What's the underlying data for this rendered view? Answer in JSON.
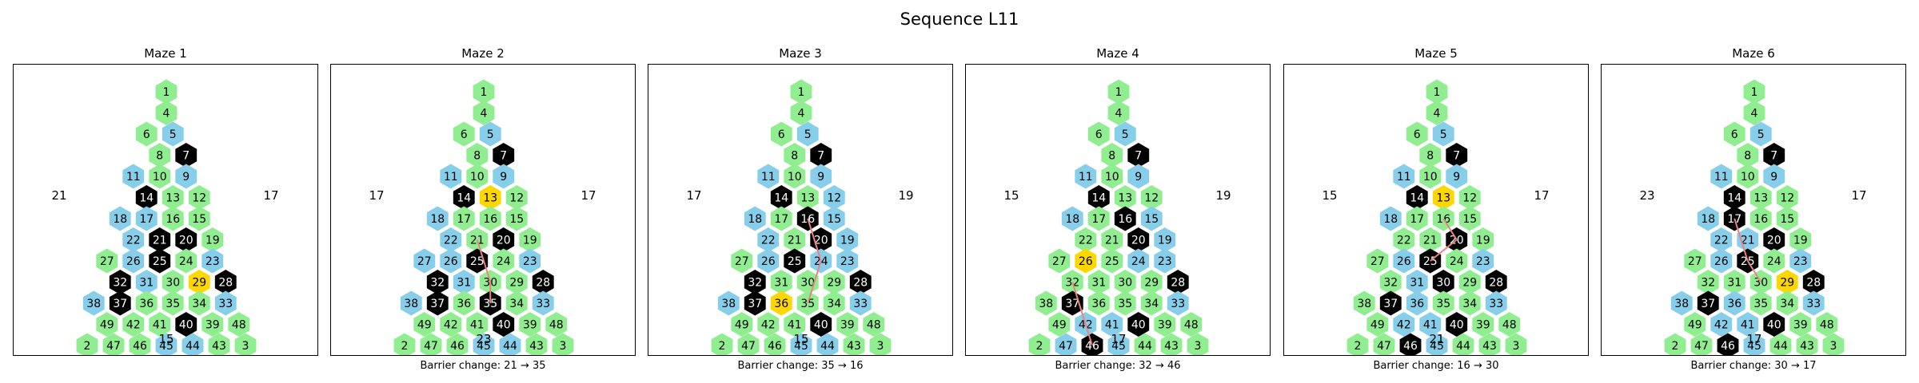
{
  "title": "Sequence L11",
  "colors": {
    "green": "#90EE90",
    "blue": "#87CEEB",
    "black": "#000000",
    "gold": "#FFD700",
    "barrier": "#F08080"
  },
  "mazes": [
    {
      "title": "Maze 1",
      "left_number": "21",
      "right_number": "17",
      "bottom_number": "15",
      "caption": "",
      "blue": [
        5,
        9,
        11,
        17,
        18,
        22,
        23,
        26,
        31,
        33,
        38,
        44,
        45
      ],
      "black": [
        7,
        14,
        20,
        21,
        25,
        28,
        32,
        37,
        40
      ],
      "gold": [
        29
      ],
      "barrier": []
    },
    {
      "title": "Maze 2",
      "left_number": "17",
      "right_number": "17",
      "bottom_number": "23",
      "caption": "Barrier change: 21 → 35",
      "blue": [
        5,
        9,
        11,
        18,
        22,
        23,
        26,
        27,
        31,
        33,
        38,
        44,
        45
      ],
      "black": [
        7,
        14,
        20,
        25,
        28,
        32,
        35,
        37,
        40
      ],
      "gold": [
        13
      ],
      "barrier": [
        [
          21,
          30
        ],
        [
          30,
          35
        ]
      ]
    },
    {
      "title": "Maze 3",
      "left_number": "17",
      "right_number": "19",
      "bottom_number": "15",
      "caption": "Barrier change: 35 → 16",
      "blue": [
        5,
        9,
        11,
        12,
        15,
        18,
        19,
        22,
        23,
        24,
        26,
        33,
        38,
        44,
        45
      ],
      "black": [
        7,
        14,
        16,
        20,
        25,
        28,
        32,
        37,
        40
      ],
      "gold": [
        36
      ],
      "barrier": [
        [
          16,
          24
        ],
        [
          24,
          35
        ]
      ]
    },
    {
      "title": "Maze 4",
      "left_number": "15",
      "right_number": "19",
      "bottom_number": "17",
      "caption": "Barrier change: 32 → 46",
      "blue": [
        5,
        9,
        11,
        15,
        18,
        19,
        23,
        24,
        33,
        41,
        42,
        45,
        47
      ],
      "black": [
        7,
        14,
        16,
        20,
        28,
        37,
        40,
        46
      ],
      "gold": [
        26
      ],
      "barrier": [
        [
          32,
          42
        ],
        [
          42,
          46
        ]
      ]
    },
    {
      "title": "Maze 5",
      "left_number": "15",
      "right_number": "17",
      "bottom_number": "21",
      "caption": "Barrier change: 16 → 30",
      "blue": [
        5,
        9,
        11,
        18,
        23,
        26,
        31,
        33,
        36,
        41,
        42,
        45
      ],
      "black": [
        7,
        14,
        20,
        25,
        28,
        30,
        37,
        40,
        46
      ],
      "gold": [
        13
      ],
      "barrier": [
        [
          16,
          20
        ],
        [
          20,
          25
        ]
      ]
    },
    {
      "title": "Maze 6",
      "left_number": "23",
      "right_number": "17",
      "bottom_number": "17",
      "caption": "Barrier change: 30 → 17",
      "blue": [
        5,
        9,
        11,
        18,
        21,
        22,
        23,
        26,
        33,
        36,
        38,
        41,
        42,
        45
      ],
      "black": [
        7,
        14,
        17,
        20,
        25,
        28,
        37,
        40,
        46
      ],
      "gold": [
        29
      ],
      "barrier": [
        [
          17,
          25
        ],
        [
          25,
          30
        ]
      ]
    }
  ]
}
